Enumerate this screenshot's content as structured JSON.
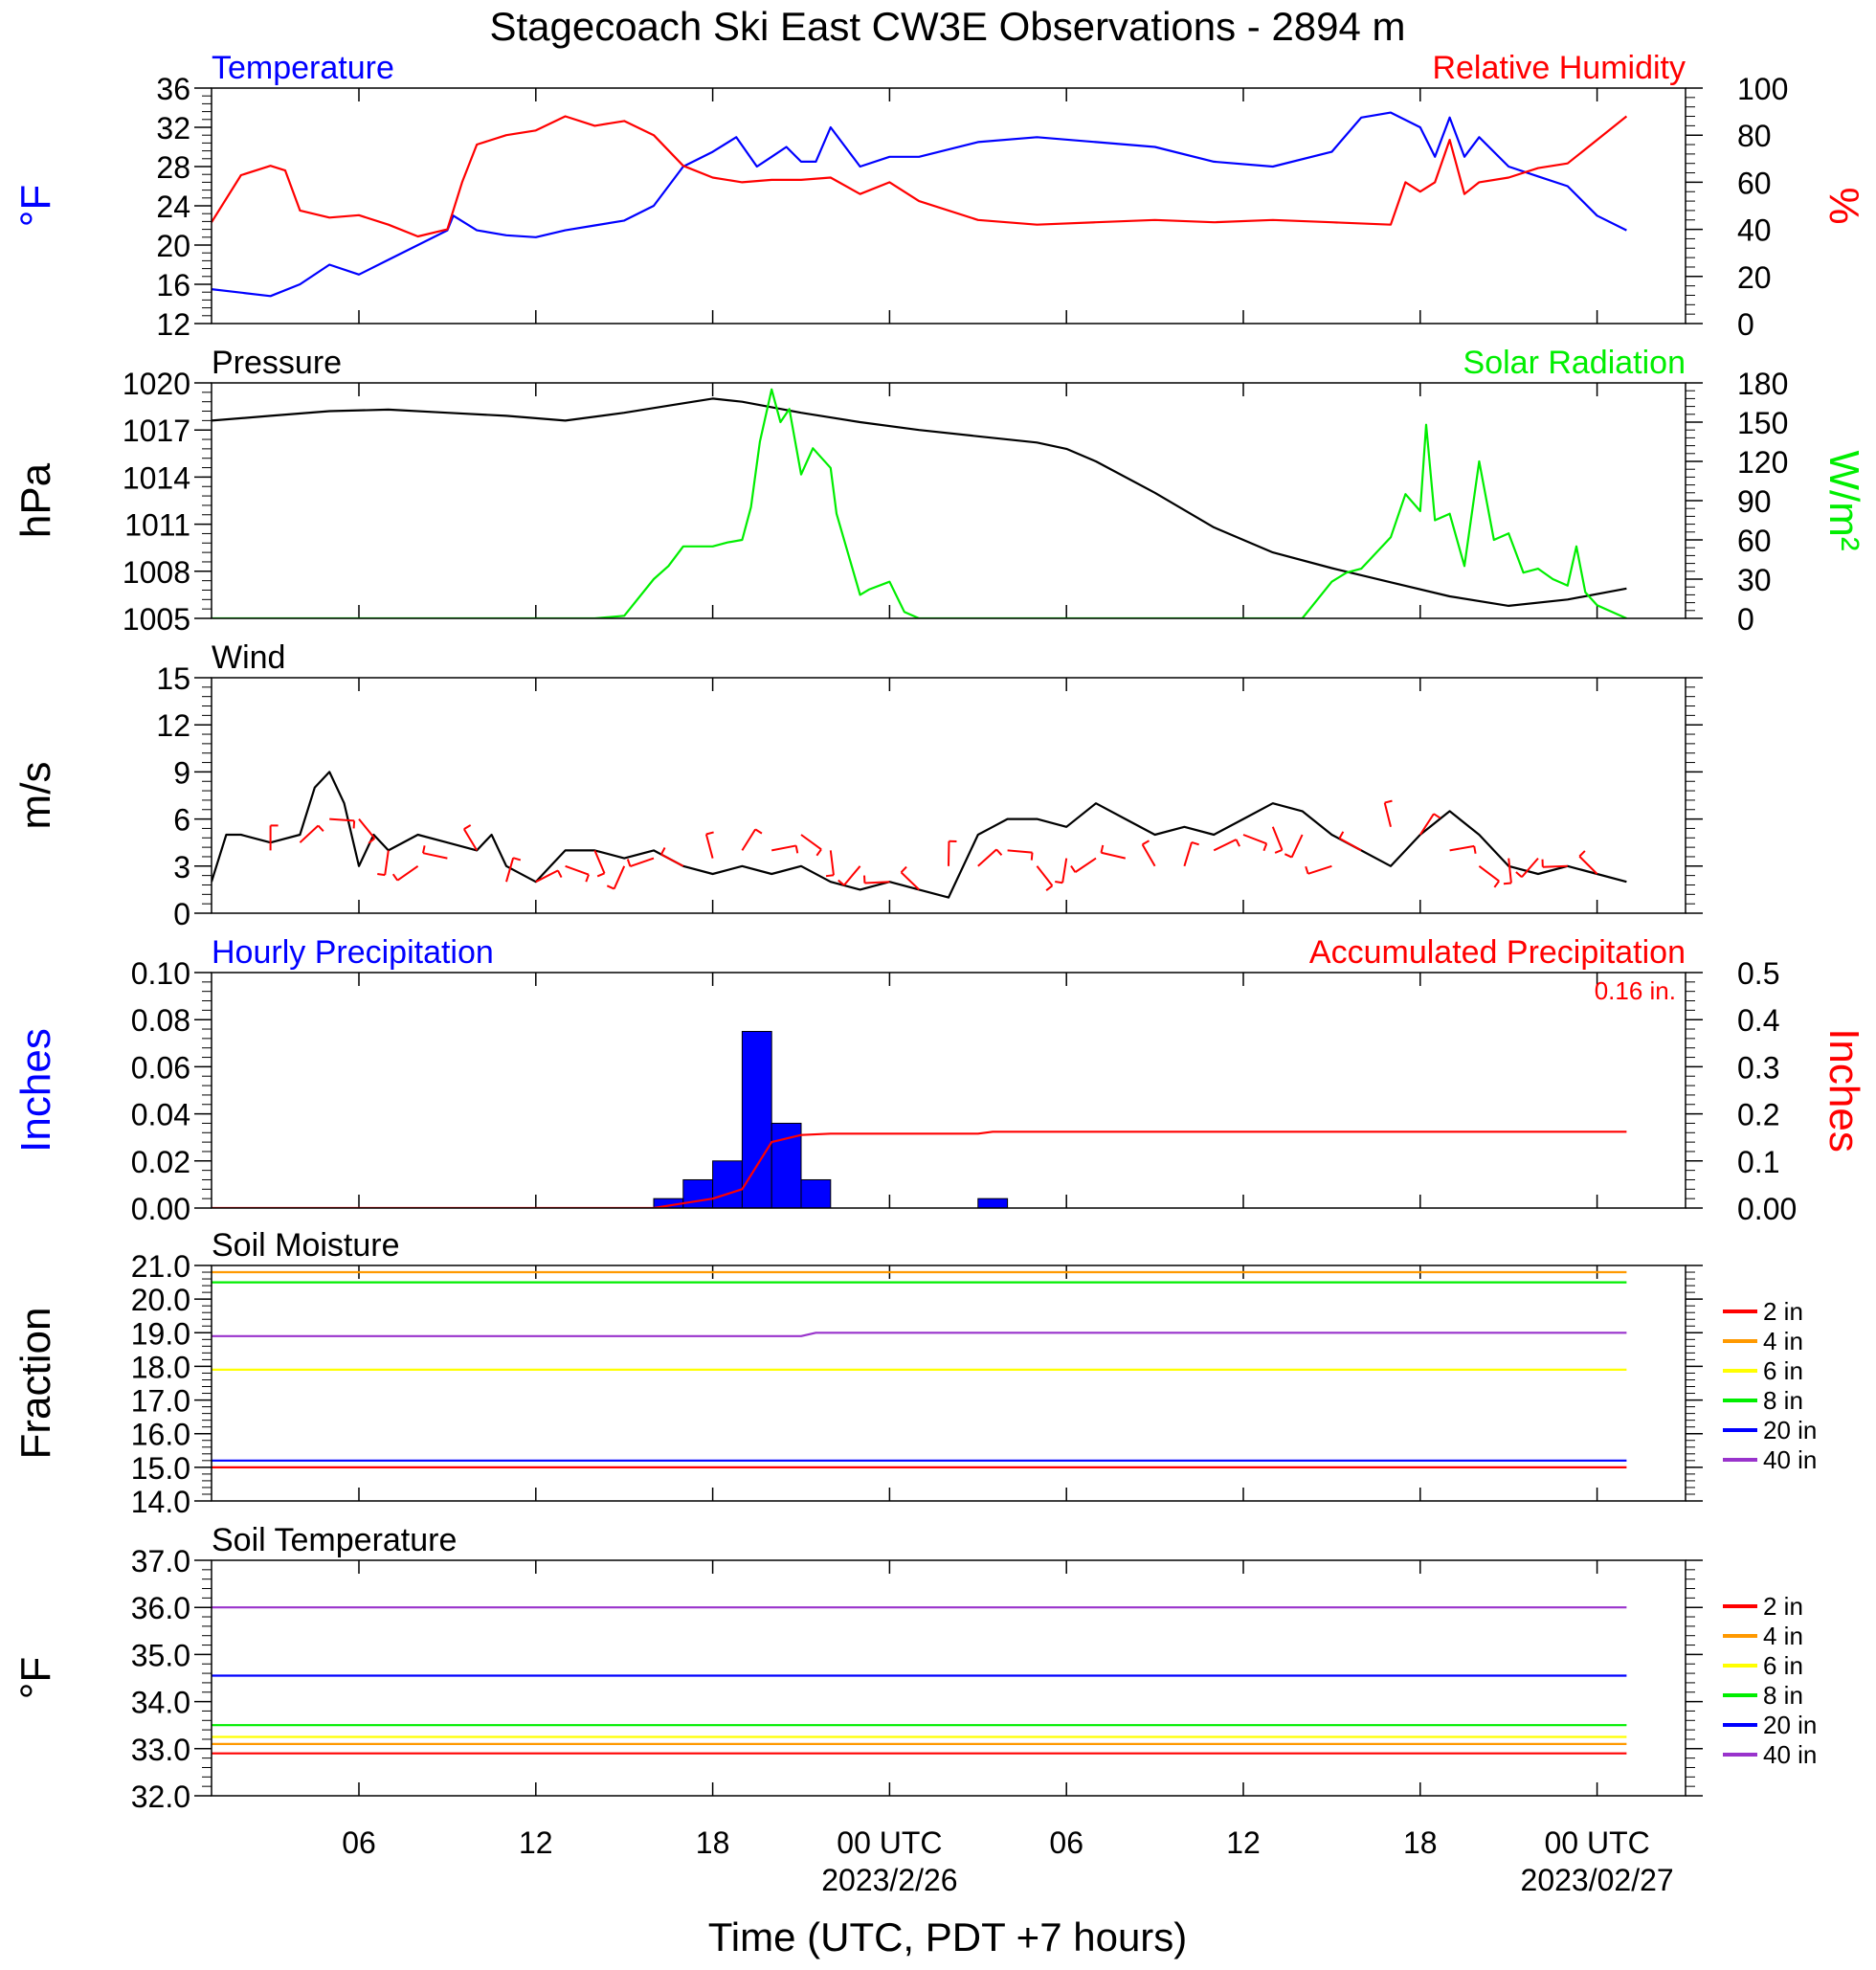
{
  "title": "Stagecoach Ski East CW3E Observations - 2894 m",
  "xaxis": {
    "label": "Time (UTC, PDT +7 hours)",
    "start_hour": 0,
    "end_hour": 50,
    "ticks": [
      {
        "hour": 5,
        "label": "06",
        "date": ""
      },
      {
        "hour": 11,
        "label": "12",
        "date": ""
      },
      {
        "hour": 17,
        "label": "18",
        "date": ""
      },
      {
        "hour": 23,
        "label": "00 UTC",
        "date": "2023/2/26"
      },
      {
        "hour": 29,
        "label": "06",
        "date": ""
      },
      {
        "hour": 35,
        "label": "12",
        "date": ""
      },
      {
        "hour": 41,
        "label": "18",
        "date": ""
      },
      {
        "hour": 47,
        "label": "00 UTC",
        "date": "2023/02/27"
      }
    ]
  },
  "colors": {
    "blue": "#0000ff",
    "red": "#ff0000",
    "black": "#000000",
    "green": "#00ee00",
    "orange": "#ff9900",
    "yellow": "#ffff00",
    "purple": "#9933cc"
  },
  "chart_data": [
    {
      "id": "temperature-rh",
      "type": "line",
      "title_left": "Temperature",
      "title_right": "Relative Humidity",
      "ylabel_left": "°F",
      "ylabel_right": "%",
      "ylim_left": [
        12,
        36
      ],
      "yticks_left": [
        "12",
        "16",
        "20",
        "24",
        "28",
        "32",
        "36"
      ],
      "ylim_right": [
        0,
        100
      ],
      "yticks_right": [
        "0",
        "20",
        "40",
        "60",
        "80",
        "100"
      ],
      "series": [
        {
          "name": "Temperature",
          "axis": "left",
          "color": "#0000ff",
          "x": [
            0,
            2,
            3,
            4,
            5,
            6,
            7,
            8,
            8.2,
            9,
            10,
            11,
            12,
            13,
            14,
            15,
            16,
            17,
            17.8,
            18.5,
            19,
            19.5,
            20,
            20.5,
            21,
            22,
            23,
            24,
            26,
            28,
            30,
            32,
            34,
            36,
            38,
            39,
            40,
            41,
            41.5,
            42,
            42.5,
            43,
            44,
            45,
            46,
            47,
            48
          ],
          "y": [
            15.5,
            14.8,
            16,
            18,
            17,
            18.5,
            20,
            21.5,
            23,
            21.5,
            21,
            20.8,
            21.5,
            22,
            22.5,
            24,
            28,
            29.5,
            31,
            28,
            29,
            30,
            28.5,
            28.5,
            32,
            28,
            29,
            29,
            30.5,
            31,
            30.5,
            30,
            28.5,
            28,
            29.5,
            33,
            33.5,
            32,
            29,
            33,
            29,
            31,
            28,
            27,
            26,
            23,
            21.5
          ]
        },
        {
          "name": "Relative Humidity",
          "axis": "right",
          "color": "#ff0000",
          "x": [
            0,
            1,
            2,
            2.5,
            3,
            4,
            5,
            6,
            7,
            8,
            8.5,
            9,
            10,
            11,
            12,
            13,
            14,
            15,
            16,
            17,
            18,
            19,
            20,
            21,
            22,
            23,
            24,
            26,
            28,
            30,
            32,
            34,
            36,
            38,
            40,
            40.5,
            41,
            41.5,
            42,
            42.5,
            43,
            44,
            45,
            46,
            47,
            48
          ],
          "y": [
            43,
            63,
            67,
            65,
            48,
            45,
            46,
            42,
            37,
            40,
            60,
            76,
            80,
            82,
            88,
            84,
            86,
            80,
            67,
            62,
            60,
            61,
            61,
            62,
            55,
            60,
            52,
            44,
            42,
            43,
            44,
            43,
            44,
            43,
            42,
            60,
            56,
            60,
            78,
            55,
            60,
            62,
            66,
            68,
            78,
            88
          ]
        }
      ]
    },
    {
      "id": "pressure-solar",
      "type": "line",
      "title_left": "Pressure",
      "title_right": "Solar Radiation",
      "ylabel_left": "hPa",
      "ylabel_right": "W/m²",
      "ylim_left": [
        1005,
        1020
      ],
      "yticks_left": [
        "1005",
        "1008",
        "1011",
        "1014",
        "1017",
        "1020"
      ],
      "ylim_right": [
        0,
        180
      ],
      "yticks_right": [
        "0",
        "30",
        "60",
        "90",
        "120",
        "150",
        "180"
      ],
      "series": [
        {
          "name": "Pressure",
          "axis": "left",
          "color": "#000000",
          "x": [
            0,
            2,
            4,
            6,
            8,
            10,
            12,
            14,
            16,
            17,
            18,
            20,
            22,
            24,
            26,
            28,
            29,
            30,
            32,
            34,
            36,
            38,
            40,
            42,
            44,
            46,
            48
          ],
          "y": [
            1017.6,
            1017.9,
            1018.2,
            1018.3,
            1018.1,
            1017.9,
            1017.6,
            1018.1,
            1018.7,
            1019.0,
            1018.8,
            1018.1,
            1017.5,
            1017.0,
            1016.6,
            1016.2,
            1015.8,
            1015.0,
            1013.0,
            1010.8,
            1009.2,
            1008.2,
            1007.3,
            1006.4,
            1005.8,
            1006.2,
            1006.9
          ]
        },
        {
          "name": "Solar Radiation",
          "axis": "right",
          "color": "#00ee00",
          "x": [
            0,
            13,
            14,
            15,
            15.5,
            16,
            17,
            17.5,
            18,
            18.3,
            18.6,
            19,
            19.3,
            19.6,
            20,
            20.4,
            21,
            21.2,
            22,
            22.3,
            23,
            23.5,
            24,
            37,
            38,
            38.5,
            39,
            40,
            40.5,
            41,
            41.2,
            41.5,
            42,
            42.5,
            43,
            43.5,
            44,
            44.5,
            45,
            45.5,
            46,
            46.3,
            46.6,
            47,
            48
          ],
          "y": [
            0,
            0,
            2,
            30,
            40,
            55,
            55,
            58,
            60,
            85,
            135,
            175,
            150,
            160,
            110,
            130,
            115,
            80,
            18,
            22,
            28,
            5,
            0,
            0,
            28,
            35,
            38,
            62,
            95,
            82,
            148,
            75,
            80,
            40,
            120,
            60,
            65,
            35,
            38,
            30,
            25,
            55,
            20,
            10,
            0
          ]
        }
      ]
    },
    {
      "id": "wind",
      "type": "line",
      "title_left": "Wind",
      "ylabel_left": "m/s",
      "ylim_left": [
        0,
        15
      ],
      "yticks_left": [
        "0",
        "3",
        "6",
        "9",
        "12",
        "15"
      ],
      "series": [
        {
          "name": "Wind",
          "axis": "left",
          "color": "#000000",
          "x": [
            0,
            0.5,
            1,
            2,
            3,
            3.5,
            4,
            4.5,
            5,
            5.5,
            6,
            7,
            8,
            9,
            9.5,
            10,
            11,
            11.5,
            12,
            13,
            14,
            15,
            16,
            17,
            18,
            19,
            20,
            21,
            22,
            23,
            24,
            25,
            26,
            26.5,
            27,
            28,
            29,
            30,
            31,
            32,
            33,
            34,
            35,
            36,
            37,
            38,
            39,
            40,
            41,
            42,
            43,
            44,
            45,
            46,
            47,
            48
          ],
          "y": [
            2,
            5,
            5,
            4.5,
            5,
            8,
            9,
            7,
            3,
            5,
            4,
            5,
            4.5,
            4,
            5,
            3,
            2,
            3,
            4,
            4,
            3.5,
            4,
            3,
            2.5,
            3,
            2.5,
            3,
            2,
            1.5,
            2,
            1.5,
            1,
            5,
            5.5,
            6,
            6,
            5.5,
            7,
            6,
            5,
            5.5,
            5,
            6,
            7,
            6.5,
            5,
            4,
            3,
            5,
            6.5,
            5,
            3,
            2.5,
            3,
            2.5,
            2
          ]
        },
        {
          "name": "",
          "axis": "left",
          "color": "#ff0000",
          "kind": "barbs",
          "x": [
            2,
            3,
            4,
            5,
            6,
            7,
            8,
            9,
            10,
            11,
            12,
            13,
            14,
            15,
            16,
            17,
            18,
            19,
            20,
            21,
            22,
            23,
            24,
            25,
            26,
            27,
            28,
            29,
            30,
            31,
            32,
            33,
            34,
            35,
            36,
            37,
            38,
            39,
            40,
            41,
            42,
            43,
            44,
            45,
            46,
            47
          ],
          "y": [
            4,
            4.5,
            6,
            6,
            4,
            3,
            3.5,
            4,
            2,
            2,
            3,
            4,
            3,
            3.5,
            3,
            3.5,
            4,
            4,
            5,
            4,
            3,
            2,
            1.5,
            3,
            3,
            4,
            3,
            3.5,
            3.5,
            3.5,
            3,
            3,
            4,
            5,
            5.5,
            5,
            3,
            4,
            5.5,
            5,
            4,
            3,
            3.5,
            3.5,
            3,
            2.5
          ]
        }
      ]
    },
    {
      "id": "precipitation",
      "type": "bar",
      "title_left": "Hourly Precipitation",
      "title_right": "Accumulated Precipitation",
      "annotation": "0.16 in.",
      "ylabel_left": "Inches",
      "ylabel_right": "Inches",
      "ylim_left": [
        0,
        0.1
      ],
      "yticks_left": [
        "0.00",
        "0.02",
        "0.04",
        "0.06",
        "0.08",
        "0.10"
      ],
      "ylim_right": [
        0,
        0.5
      ],
      "yticks_right": [
        "0.00",
        "0.1",
        "0.2",
        "0.3",
        "0.4",
        "0.5"
      ],
      "bars": {
        "name": "Hourly Precipitation",
        "color": "#0000ff",
        "x": [
          15,
          16,
          17,
          18,
          19,
          20,
          26
        ],
        "values": [
          0.004,
          0.012,
          0.02,
          0.075,
          0.036,
          0.012,
          0.004
        ]
      },
      "series": [
        {
          "name": "Accumulated Precipitation",
          "axis": "right",
          "color": "#ff0000",
          "x": [
            0,
            15,
            16,
            17,
            18,
            18.5,
            19,
            20,
            21,
            26,
            26.5,
            48
          ],
          "y": [
            0,
            0,
            0.01,
            0.02,
            0.04,
            0.09,
            0.14,
            0.155,
            0.158,
            0.158,
            0.162,
            0.162
          ]
        }
      ]
    },
    {
      "id": "soil-moisture",
      "type": "line",
      "title_left": "Soil Moisture",
      "ylabel_left": "Fraction",
      "ylim_left": [
        14,
        21
      ],
      "yticks_left": [
        "14.0",
        "15.0",
        "16.0",
        "17.0",
        "18.0",
        "19.0",
        "20.0",
        "21.0"
      ],
      "legend": [
        "2 in",
        "4 in",
        "6 in",
        "8 in",
        "20 in",
        "40 in"
      ],
      "series": [
        {
          "name": "2 in",
          "color": "#ff0000",
          "x": [
            0,
            48
          ],
          "y": [
            15.0,
            15.0
          ]
        },
        {
          "name": "4 in",
          "color": "#ff9900",
          "x": [
            0,
            48
          ],
          "y": [
            20.8,
            20.8
          ]
        },
        {
          "name": "6 in",
          "color": "#ffff00",
          "x": [
            0,
            48
          ],
          "y": [
            17.9,
            17.9
          ]
        },
        {
          "name": "8 in",
          "color": "#00ee00",
          "x": [
            0,
            48
          ],
          "y": [
            20.5,
            20.5
          ]
        },
        {
          "name": "20 in",
          "color": "#0000ff",
          "x": [
            0,
            48
          ],
          "y": [
            15.2,
            15.2
          ]
        },
        {
          "name": "40 in",
          "color": "#9933cc",
          "x": [
            0,
            20,
            20.5,
            48
          ],
          "y": [
            18.9,
            18.9,
            19.0,
            19.0
          ]
        }
      ]
    },
    {
      "id": "soil-temperature",
      "type": "line",
      "title_left": "Soil Temperature",
      "ylabel_left": "°F",
      "ylim_left": [
        32,
        37
      ],
      "yticks_left": [
        "32.0",
        "33.0",
        "34.0",
        "35.0",
        "36.0",
        "37.0"
      ],
      "legend": [
        "2 in",
        "4 in",
        "6 in",
        "8 in",
        "20 in",
        "40 in"
      ],
      "series": [
        {
          "name": "2 in",
          "color": "#ff0000",
          "x": [
            0,
            48
          ],
          "y": [
            32.9,
            32.9
          ]
        },
        {
          "name": "4 in",
          "color": "#ff9900",
          "x": [
            0,
            48
          ],
          "y": [
            33.1,
            33.1
          ]
        },
        {
          "name": "6 in",
          "color": "#ffff00",
          "x": [
            0,
            48
          ],
          "y": [
            33.25,
            33.25
          ]
        },
        {
          "name": "8 in",
          "color": "#00ee00",
          "x": [
            0,
            48
          ],
          "y": [
            33.5,
            33.5
          ]
        },
        {
          "name": "20 in",
          "color": "#0000ff",
          "x": [
            0,
            48
          ],
          "y": [
            34.55,
            34.55
          ]
        },
        {
          "name": "40 in",
          "color": "#9933cc",
          "x": [
            0,
            48
          ],
          "y": [
            36.0,
            36.0
          ]
        }
      ]
    }
  ]
}
